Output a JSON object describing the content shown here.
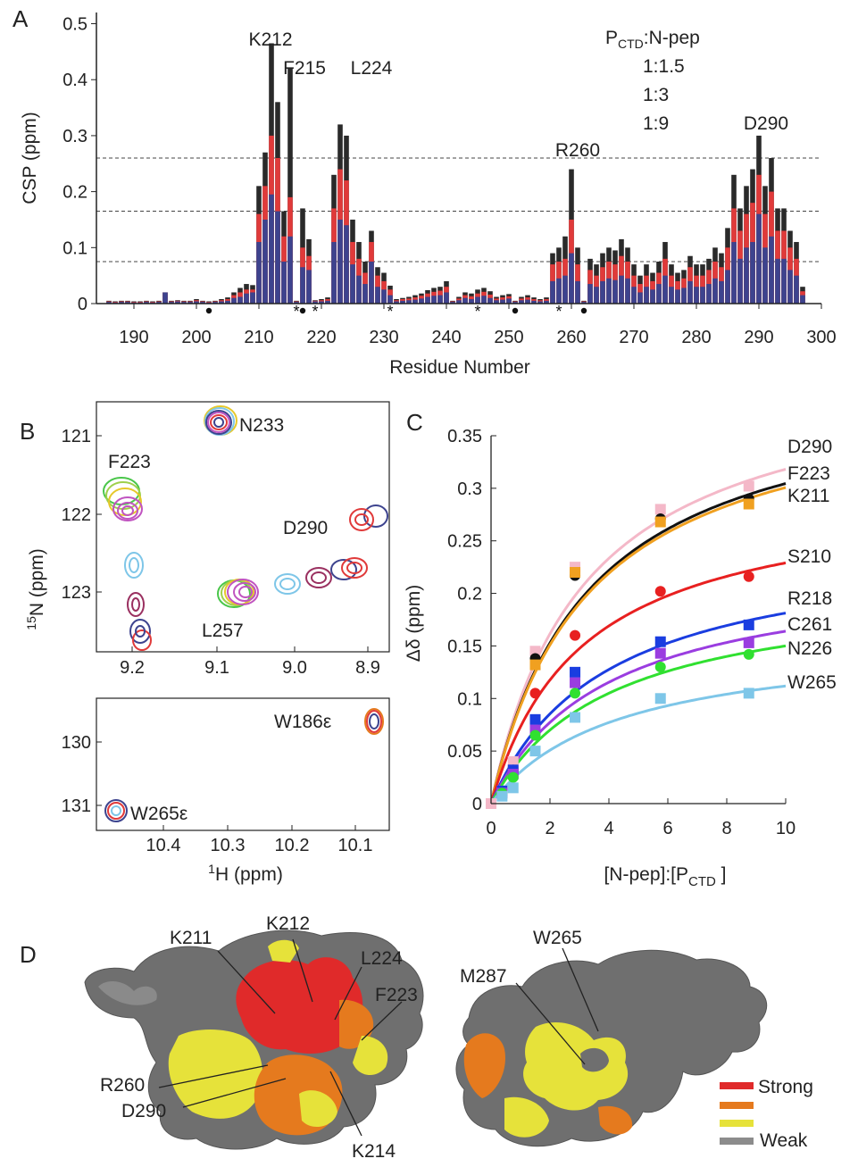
{
  "panels": {
    "a": "A",
    "b": "B",
    "c": "C",
    "d": "D"
  },
  "colors": {
    "ratio1": "#3d438e",
    "ratio2": "#e03a3a",
    "ratio3": "#2a2a2a",
    "surface_grey": "#6f6f6f",
    "strong": "#e02a2a",
    "orange": "#e57a1e",
    "yellow": "#e6e23a",
    "weak": "#8c8c8c"
  },
  "panelA": {
    "ylabel": "CSP (ppm)",
    "xlabel": "Residue Number",
    "legend_title_main": "P",
    "legend_title_sub": "CTD",
    "legend_title_rest": ":N-pep",
    "legend": [
      "1:1.5",
      "1:3",
      "1:9"
    ],
    "peak_labels": [
      "K212",
      "F215",
      "L224",
      "R260",
      "D290"
    ],
    "marker_star": "*"
  },
  "panelB": {
    "ylabel_sup": "15",
    "ylabel_rest": "N (ppm)",
    "xlabel_sup": "1",
    "xlabel_rest": "H (ppm)",
    "top_labels": [
      "N233",
      "F223",
      "D290",
      "L257"
    ],
    "bottom_labels": [
      "W186ε",
      "W265ε"
    ]
  },
  "panelD": {
    "left_labels": [
      "K211",
      "K212",
      "L224",
      "F223",
      "R260",
      "D290",
      "K214"
    ],
    "right_labels": [
      "W265",
      "M287"
    ],
    "legend_strong": "Strong",
    "legend_weak": "Weak"
  },
  "chart_data": [
    {
      "type": "bar",
      "title": "",
      "xlabel": "Residue Number",
      "ylabel": "CSP (ppm)",
      "xlim": [
        184,
        300
      ],
      "ylim": [
        0,
        0.52
      ],
      "xticks": [
        190,
        200,
        210,
        220,
        230,
        240,
        250,
        260,
        270,
        280,
        290,
        300
      ],
      "yticks": [
        "0",
        "0.1",
        "0.2",
        "0.3",
        "0.4",
        "0.5"
      ],
      "hlines": [
        0.075,
        0.165,
        0.26
      ],
      "residues": [
        186,
        187,
        188,
        189,
        190,
        191,
        192,
        193,
        194,
        195,
        196,
        197,
        198,
        199,
        200,
        201,
        202,
        203,
        204,
        205,
        206,
        207,
        208,
        209,
        210,
        211,
        212,
        213,
        214,
        215,
        216,
        217,
        218,
        219,
        220,
        221,
        222,
        223,
        224,
        225,
        226,
        227,
        228,
        229,
        230,
        231,
        232,
        233,
        234,
        235,
        236,
        237,
        238,
        239,
        240,
        241,
        242,
        243,
        244,
        245,
        246,
        247,
        248,
        249,
        250,
        251,
        252,
        253,
        254,
        255,
        256,
        257,
        258,
        259,
        260,
        261,
        262,
        263,
        264,
        265,
        266,
        267,
        268,
        269,
        270,
        271,
        272,
        273,
        274,
        275,
        276,
        277,
        278,
        279,
        280,
        281,
        282,
        283,
        284,
        285,
        286,
        287,
        288,
        289,
        290,
        291,
        292,
        293,
        294,
        295,
        296,
        297
      ],
      "series": [
        {
          "name": "1:1.5",
          "values": [
            0.003,
            0.002,
            0.003,
            0.003,
            0.002,
            0.002,
            0.003,
            0.002,
            0.003,
            0.02,
            0.003,
            0.004,
            0.003,
            0.003,
            0.004,
            0.003,
            0.002,
            0.003,
            0.004,
            0.005,
            0.01,
            0.012,
            0.018,
            0.02,
            0.11,
            0.15,
            0.195,
            0.165,
            0.075,
            0.12,
            0.003,
            0.065,
            0.06,
            0.004,
            0.004,
            0.005,
            0.11,
            0.15,
            0.14,
            0.07,
            0.05,
            0.035,
            0.075,
            0.03,
            0.025,
            0.015,
            0.004,
            0.005,
            0.006,
            0.007,
            0.009,
            0.012,
            0.014,
            0.015,
            0.02,
            0.003,
            0.006,
            0.01,
            0.008,
            0.012,
            0.014,
            0.01,
            0.006,
            0.007,
            0.009,
            0.003,
            0.006,
            0.007,
            0.005,
            0.004,
            0.005,
            0.04,
            0.045,
            0.05,
            0.09,
            0.04,
            0.003,
            0.035,
            0.03,
            0.04,
            0.045,
            0.042,
            0.05,
            0.045,
            0.03,
            0.02,
            0.03,
            0.025,
            0.035,
            0.05,
            0.03,
            0.025,
            0.028,
            0.04,
            0.03,
            0.03,
            0.035,
            0.045,
            0.04,
            0.06,
            0.11,
            0.08,
            0.1,
            0.11,
            0.16,
            0.1,
            0.12,
            0.08,
            0.08,
            0.06,
            0.05,
            0.015
          ]
        },
        {
          "name": "1:3",
          "values": [
            0.004,
            0.003,
            0.004,
            0.004,
            0.003,
            0.003,
            0.004,
            0.003,
            0.004,
            0.02,
            0.004,
            0.005,
            0.004,
            0.004,
            0.006,
            0.004,
            0.003,
            0.004,
            0.006,
            0.008,
            0.015,
            0.02,
            0.025,
            0.025,
            0.16,
            0.21,
            0.3,
            0.26,
            0.12,
            0.19,
            0.004,
            0.1,
            0.085,
            0.005,
            0.006,
            0.008,
            0.17,
            0.24,
            0.22,
            0.11,
            0.08,
            0.055,
            0.11,
            0.05,
            0.04,
            0.025,
            0.006,
            0.008,
            0.009,
            0.011,
            0.014,
            0.018,
            0.021,
            0.023,
            0.03,
            0.004,
            0.009,
            0.015,
            0.013,
            0.018,
            0.021,
            0.016,
            0.009,
            0.011,
            0.013,
            0.004,
            0.009,
            0.011,
            0.008,
            0.006,
            0.008,
            0.07,
            0.075,
            0.08,
            0.15,
            0.07,
            0.004,
            0.06,
            0.05,
            0.065,
            0.075,
            0.07,
            0.085,
            0.075,
            0.05,
            0.035,
            0.05,
            0.04,
            0.055,
            0.08,
            0.05,
            0.04,
            0.045,
            0.065,
            0.05,
            0.05,
            0.06,
            0.075,
            0.065,
            0.1,
            0.17,
            0.13,
            0.16,
            0.18,
            0.23,
            0.16,
            0.2,
            0.13,
            0.13,
            0.1,
            0.08,
            0.022
          ]
        },
        {
          "name": "1:9",
          "values": [
            0.005,
            0.004,
            0.005,
            0.005,
            0.004,
            0.004,
            0.005,
            0.004,
            0.005,
            0.02,
            0.005,
            0.006,
            0.005,
            0.005,
            0.008,
            0.005,
            0.004,
            0.005,
            0.008,
            0.011,
            0.02,
            0.028,
            0.035,
            0.033,
            0.21,
            0.27,
            0.465,
            0.36,
            0.165,
            0.42,
            0.005,
            0.17,
            0.115,
            0.006,
            0.008,
            0.011,
            0.23,
            0.32,
            0.3,
            0.15,
            0.11,
            0.075,
            0.13,
            0.065,
            0.055,
            0.032,
            0.008,
            0.01,
            0.012,
            0.015,
            0.018,
            0.024,
            0.028,
            0.03,
            0.04,
            0.005,
            0.012,
            0.02,
            0.018,
            0.025,
            0.028,
            0.022,
            0.012,
            0.015,
            0.017,
            0.005,
            0.012,
            0.015,
            0.011,
            0.008,
            0.011,
            0.09,
            0.1,
            0.12,
            0.24,
            0.1,
            0.005,
            0.08,
            0.07,
            0.09,
            0.1,
            0.095,
            0.115,
            0.1,
            0.07,
            0.05,
            0.07,
            0.055,
            0.075,
            0.11,
            0.07,
            0.055,
            0.06,
            0.085,
            0.07,
            0.07,
            0.08,
            0.1,
            0.09,
            0.135,
            0.23,
            0.17,
            0.21,
            0.24,
            0.3,
            0.21,
            0.26,
            0.17,
            0.17,
            0.13,
            0.11,
            0.03
          ]
        }
      ],
      "dot_residues": [
        202,
        217,
        251,
        262
      ],
      "star_residues": [
        216,
        219,
        231,
        245,
        258
      ]
    },
    {
      "type": "scatter",
      "title": "",
      "xlabel": "[N-pep]:[P",
      "xlabel_sub": "CTD",
      "xlabel_end": " ]",
      "ylabel": "Δδ (ppm)",
      "xlim": [
        0,
        10
      ],
      "ylim": [
        0,
        0.35
      ],
      "xticks": [
        0,
        2,
        4,
        6,
        8,
        10
      ],
      "yticks": [
        "0",
        "0.05",
        "0.1",
        "0.15",
        "0.2",
        "0.25",
        "0.3",
        "0.35"
      ],
      "x": [
        0.375,
        0.75,
        1.5,
        2.85,
        5.75,
        8.75
      ],
      "series": [
        {
          "name": "D290",
          "color": "#f4b8c8",
          "marker": "square",
          "values": [
            0.012,
            0.04,
            0.145,
            0.225,
            0.28,
            0.302
          ],
          "fit_max": 0.42,
          "fit_k": 3.2
        },
        {
          "name": "F223",
          "color": "#111111",
          "marker": "circle",
          "values": [
            0.01,
            0.032,
            0.138,
            0.217,
            0.271,
            0.29
          ],
          "fit_max": 0.405,
          "fit_k": 3.3
        },
        {
          "name": "K211",
          "color": "#f0a020",
          "marker": "square",
          "values": [
            0.01,
            0.03,
            0.132,
            0.22,
            0.268,
            0.285
          ],
          "fit_max": 0.4,
          "fit_k": 3.3
        },
        {
          "name": "S210",
          "color": "#e82020",
          "marker": "circle",
          "values": [
            0.01,
            0.03,
            0.105,
            0.16,
            0.202,
            0.216
          ],
          "fit_max": 0.3,
          "fit_k": 3.1
        },
        {
          "name": "R218",
          "color": "#1a3de0",
          "marker": "square",
          "values": [
            0.012,
            0.032,
            0.08,
            0.125,
            0.154,
            0.17
          ],
          "fit_max": 0.252,
          "fit_k": 3.9
        },
        {
          "name": "C261",
          "color": "#9a3de0",
          "marker": "square",
          "values": [
            0.01,
            0.028,
            0.07,
            0.115,
            0.143,
            0.153
          ],
          "fit_max": 0.228,
          "fit_k": 3.9
        },
        {
          "name": "N226",
          "color": "#30e030",
          "marker": "circle",
          "values": [
            0.01,
            0.025,
            0.065,
            0.105,
            0.13,
            0.142
          ],
          "fit_max": 0.21,
          "fit_k": 4.0
        },
        {
          "name": "W265",
          "color": "#7ec6e8",
          "marker": "square",
          "values": [
            0.007,
            0.015,
            0.05,
            0.082,
            0.1,
            0.105
          ],
          "fit_max": 0.16,
          "fit_k": 4.3
        }
      ],
      "origin_point": {
        "x": 0,
        "y": 0,
        "color": "#f4b8c8"
      }
    }
  ]
}
